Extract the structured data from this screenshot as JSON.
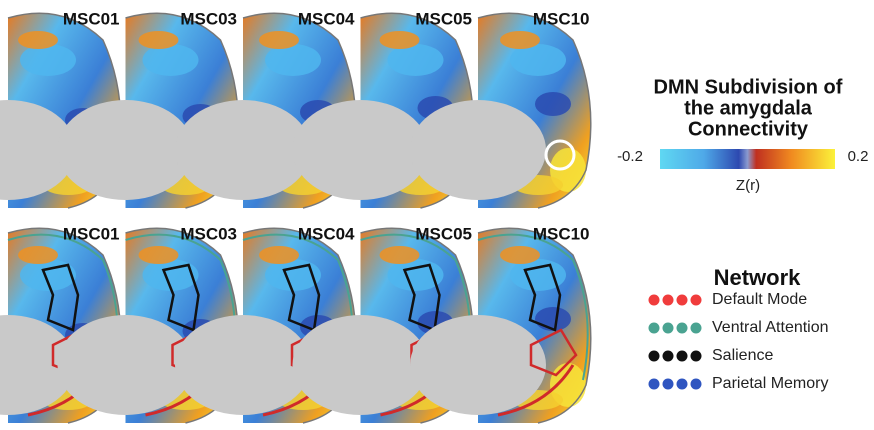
{
  "panels": {
    "top_labels": [
      "MSC01",
      "MSC03",
      "MSC04",
      "MSC05",
      "MSC10"
    ],
    "bottom_labels": [
      "MSC01",
      "MSC03",
      "MSC04",
      "MSC05",
      "MSC10"
    ]
  },
  "colorbar": {
    "title_lines": [
      "DMN Subdivision of",
      "the amygdala",
      "Connectivity"
    ],
    "min_label": "-0.2",
    "max_label": "0.2",
    "axis_label": "Z(r)"
  },
  "network_legend": {
    "title": "Network",
    "items": [
      {
        "label": "Default Mode",
        "color": "#f03c3c"
      },
      {
        "label": "Ventral Attention",
        "color": "#4aa391"
      },
      {
        "label": "Salience",
        "color": "#111111"
      },
      {
        "label": "Parietal Memory",
        "color": "#2f55c0"
      }
    ]
  }
}
